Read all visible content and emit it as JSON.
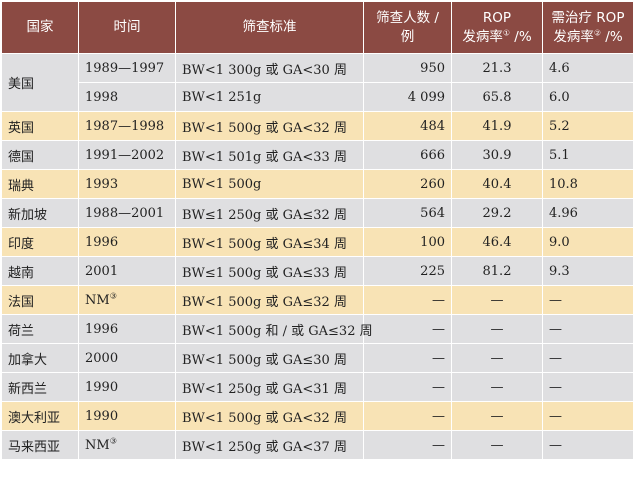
{
  "headers": {
    "country": "国家",
    "time": "时间",
    "criteria": "筛查标准",
    "screened_line1": "筛查人数 /",
    "screened_line2": "例",
    "rop_line1": "ROP",
    "rop_line2": "发病率",
    "rop_note": "①",
    "rop_unit": " /%",
    "treat_line1": "需治疗 ROP",
    "treat_line2": "发病率",
    "treat_note": "②",
    "treat_unit": " /%"
  },
  "rows": [
    {
      "country": "美国",
      "time": "1989—1997",
      "criteria": "BW<1 300g 或 GA<30 周",
      "screened": "950",
      "rop": "21.3",
      "treat": "4.6"
    },
    {
      "country": "",
      "time": "1998",
      "criteria": "BW<1 251g",
      "screened": "4 099",
      "rop": "65.8",
      "treat": "6.0"
    },
    {
      "country": "英国",
      "time": "1987—1998",
      "criteria": "BW<1 500g 或 GA<32 周",
      "screened": "484",
      "rop": "41.9",
      "treat": "5.2"
    },
    {
      "country": "德国",
      "time": "1991—2002",
      "criteria": "BW<1 501g 或 GA<33 周",
      "screened": "666",
      "rop": "30.9",
      "treat": "5.1"
    },
    {
      "country": "瑞典",
      "time": "1993",
      "criteria": "BW<1 500g",
      "screened": "260",
      "rop": "40.4",
      "treat": "10.8"
    },
    {
      "country": "新加坡",
      "time": "1988—2001",
      "criteria": "BW≤1 250g 或 GA≤32 周",
      "screened": "564",
      "rop": "29.2",
      "treat": "4.96"
    },
    {
      "country": "印度",
      "time": "1996",
      "criteria": "BW<1 500g 或 GA≤34 周",
      "screened": "100",
      "rop": "46.4",
      "treat": "9.0"
    },
    {
      "country": "越南",
      "time": "2001",
      "criteria": "BW≤1 500g 或 GA≤33 周",
      "screened": "225",
      "rop": "81.2",
      "treat": "9.3"
    },
    {
      "country": "法国",
      "time": "NM",
      "time_note": "③",
      "criteria": "BW<1 500g 或 GA≤32 周",
      "screened": "—",
      "rop": "—",
      "treat": "—"
    },
    {
      "country": "荷兰",
      "time": "1996",
      "criteria": "BW<1 500g 和 / 或 GA≤32 周",
      "screened": "—",
      "rop": "—",
      "treat": "—"
    },
    {
      "country": "加拿大",
      "time": "2000",
      "criteria": "BW<1 500g 或 GA≤30 周",
      "screened": "—",
      "rop": "—",
      "treat": "—"
    },
    {
      "country": "新西兰",
      "time": "1990",
      "criteria": "BW<1 250g 或 GA<31 周",
      "screened": "—",
      "rop": "—",
      "treat": "—"
    },
    {
      "country": "澳大利亚",
      "time": "1990",
      "criteria": "BW<1 500g 或 GA<32 周",
      "screened": "—",
      "rop": "—",
      "treat": "—"
    },
    {
      "country": "马来西亚",
      "time": "NM",
      "time_note": "③",
      "criteria": "BW<1 250g 或 GA<37 周",
      "screened": "—",
      "rop": "—",
      "treat": "—"
    }
  ]
}
